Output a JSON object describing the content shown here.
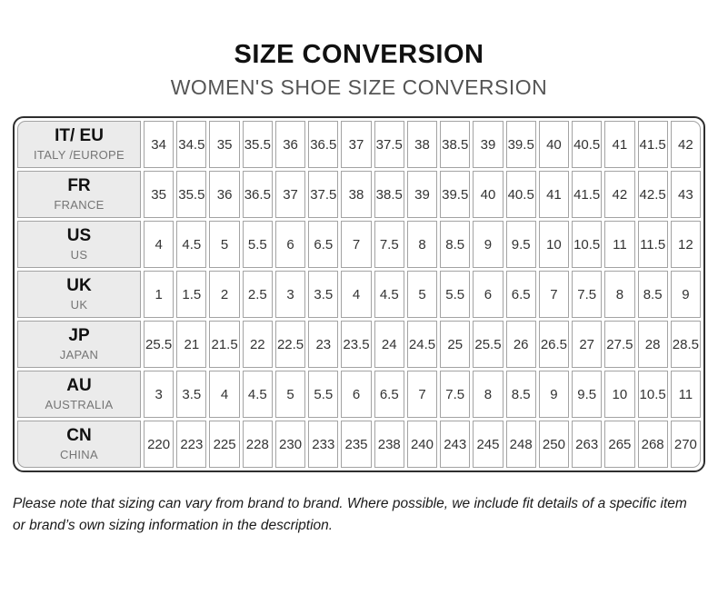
{
  "header": {
    "title": "SIZE CONVERSION",
    "subtitle": "WOMEN'S SHOE SIZE CONVERSION"
  },
  "table": {
    "rows": [
      {
        "code": "IT/ EU",
        "region": "ITALY /EUROPE",
        "values": [
          "34",
          "34.5",
          "35",
          "35.5",
          "36",
          "36.5",
          "37",
          "37.5",
          "38",
          "38.5",
          "39",
          "39.5",
          "40",
          "40.5",
          "41",
          "41.5",
          "42"
        ]
      },
      {
        "code": "FR",
        "region": "FRANCE",
        "values": [
          "35",
          "35.5",
          "36",
          "36.5",
          "37",
          "37.5",
          "38",
          "38.5",
          "39",
          "39.5",
          "40",
          "40.5",
          "41",
          "41.5",
          "42",
          "42.5",
          "43"
        ]
      },
      {
        "code": "US",
        "region": "US",
        "values": [
          "4",
          "4.5",
          "5",
          "5.5",
          "6",
          "6.5",
          "7",
          "7.5",
          "8",
          "8.5",
          "9",
          "9.5",
          "10",
          "10.5",
          "11",
          "11.5",
          "12"
        ]
      },
      {
        "code": "UK",
        "region": "UK",
        "values": [
          "1",
          "1.5",
          "2",
          "2.5",
          "3",
          "3.5",
          "4",
          "4.5",
          "5",
          "5.5",
          "6",
          "6.5",
          "7",
          "7.5",
          "8",
          "8.5",
          "9"
        ]
      },
      {
        "code": "JP",
        "region": "JAPAN",
        "values": [
          "25.5",
          "21",
          "21.5",
          "22",
          "22.5",
          "23",
          "23.5",
          "24",
          "24.5",
          "25",
          "25.5",
          "26",
          "26.5",
          "27",
          "27.5",
          "28",
          "28.5"
        ]
      },
      {
        "code": "AU",
        "region": "AUSTRALIA",
        "values": [
          "3",
          "3.5",
          "4",
          "4.5",
          "5",
          "5.5",
          "6",
          "6.5",
          "7",
          "7.5",
          "8",
          "8.5",
          "9",
          "9.5",
          "10",
          "10.5",
          "11"
        ]
      },
      {
        "code": "CN",
        "region": "CHINA",
        "values": [
          "220",
          "223",
          "225",
          "228",
          "230",
          "233",
          "235",
          "238",
          "240",
          "243",
          "245",
          "248",
          "250",
          "263",
          "265",
          "268",
          "270"
        ]
      }
    ]
  },
  "footer": {
    "note": "Please note that sizing can vary from brand to brand. Where possible, we include fit details of a specific item or brand’s own sizing information in the description."
  },
  "colors": {
    "title_text": "#111111",
    "subtitle_text": "#555555",
    "label_cell_bg": "#ebebeb",
    "outer_border": "#2e2e2e",
    "inner_border": "#a3a3a3",
    "value_text": "#333333"
  }
}
